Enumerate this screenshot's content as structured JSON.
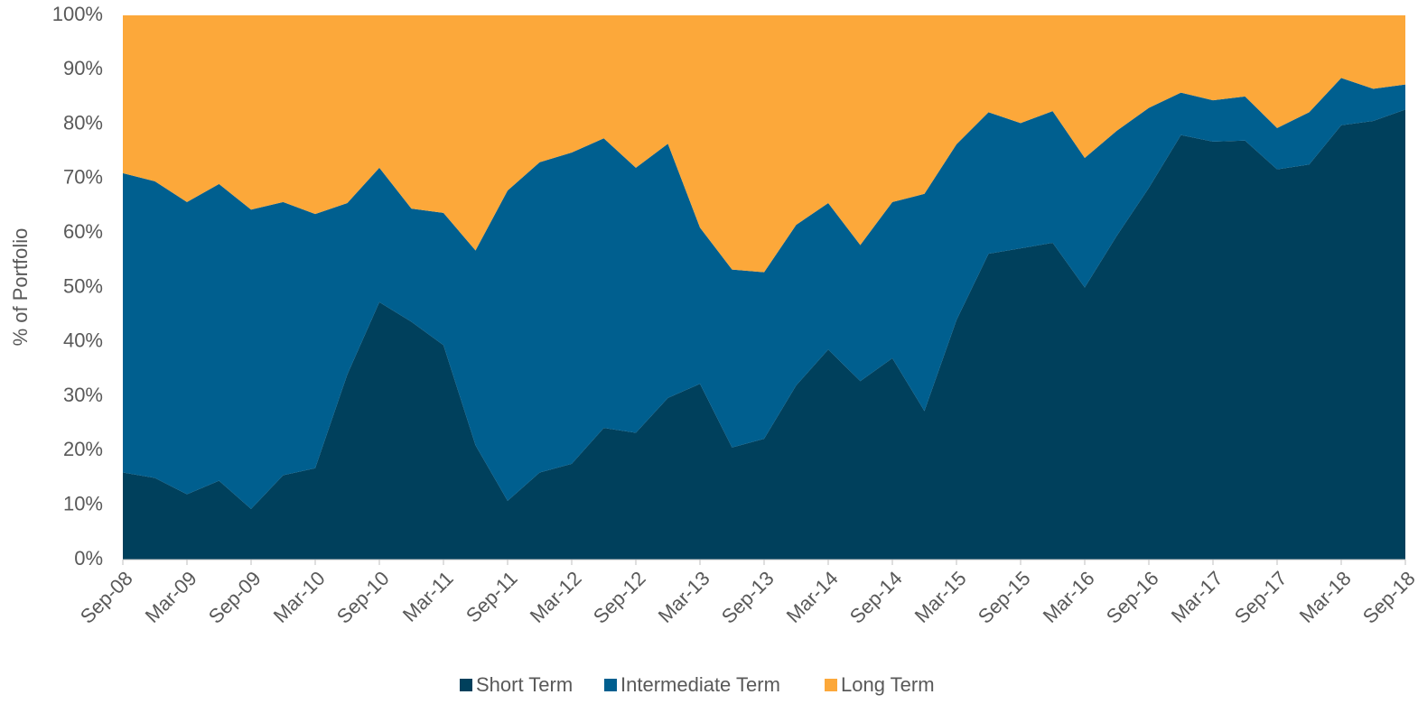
{
  "chart_data": {
    "type": "stacked_area",
    "y_label": "% of Portfolio",
    "categories": [
      "Sep-08",
      null,
      "Mar-09",
      null,
      "Sep-09",
      null,
      "Mar-10",
      null,
      "Sep-10",
      null,
      "Mar-11",
      null,
      "Sep-11",
      null,
      "Mar-12",
      null,
      "Sep-12",
      null,
      "Mar-13",
      null,
      "Sep-13",
      null,
      "Mar-14",
      null,
      "Sep-14",
      null,
      "Mar-15",
      null,
      "Sep-15",
      null,
      "Mar-16",
      null,
      "Sep-16",
      null,
      "Mar-17",
      null,
      "Sep-17",
      null,
      "Mar-18",
      null,
      "Sep-18"
    ],
    "series": [
      {
        "name": "Short Term",
        "color": "#00405c",
        "values": [
          16,
          15,
          12,
          14.5,
          9.3,
          15.5,
          16.8,
          34,
          47.3,
          43.7,
          39.4,
          21,
          10.8,
          16,
          17.6,
          24.2,
          23.3,
          29.7,
          32.3,
          20.6,
          22.2,
          32,
          38.6,
          32.8,
          37,
          27.3,
          44,
          56.2,
          57.2,
          58.2,
          50,
          59.5,
          68.3,
          78,
          76.8,
          77,
          71.7,
          72.6,
          79.8,
          80.6,
          82.7
        ]
      },
      {
        "name": "Intermediate Term",
        "color": "#005f8f",
        "values": [
          55,
          54.5,
          53.7,
          54.5,
          55,
          50.2,
          46.7,
          31.5,
          24.7,
          20.8,
          24.3,
          35.8,
          57,
          57,
          57.2,
          53.2,
          48.7,
          46.7,
          28.7,
          32.7,
          30.6,
          29.5,
          26.9,
          25,
          28.7,
          39.9,
          32.3,
          26,
          23,
          24.2,
          23.8,
          19.3,
          14.7,
          7.8,
          7.6,
          8.1,
          7.6,
          9.6,
          8.7,
          5.9,
          4.6
        ]
      },
      {
        "name": "Long Term",
        "color": "#fca83a",
        "values": [
          29,
          30.5,
          34.3,
          31,
          35.7,
          34.3,
          36.5,
          34.5,
          28,
          35.5,
          36.3,
          43.2,
          32.2,
          27,
          25.2,
          22.6,
          28,
          23.6,
          39,
          46.7,
          47.2,
          38.5,
          34.5,
          42.2,
          34.3,
          32.8,
          23.7,
          17.8,
          19.8,
          17.6,
          26.2,
          21.2,
          17,
          14.2,
          15.6,
          14.9,
          20.7,
          17.8,
          11.5,
          13.5,
          12.7
        ]
      }
    ],
    "ylim": [
      0,
      100
    ],
    "yticks": [
      {
        "value": 0,
        "label": "0%"
      },
      {
        "value": 10,
        "label": "10%"
      },
      {
        "value": 20,
        "label": "20%"
      },
      {
        "value": 30,
        "label": "30%"
      },
      {
        "value": 40,
        "label": "40%"
      },
      {
        "value": 50,
        "label": "50%"
      },
      {
        "value": 60,
        "label": "60%"
      },
      {
        "value": 70,
        "label": "70%"
      },
      {
        "value": 80,
        "label": "80%"
      },
      {
        "value": 90,
        "label": "90%"
      },
      {
        "value": 100,
        "label": "100%"
      }
    ],
    "legend": "bottom"
  }
}
